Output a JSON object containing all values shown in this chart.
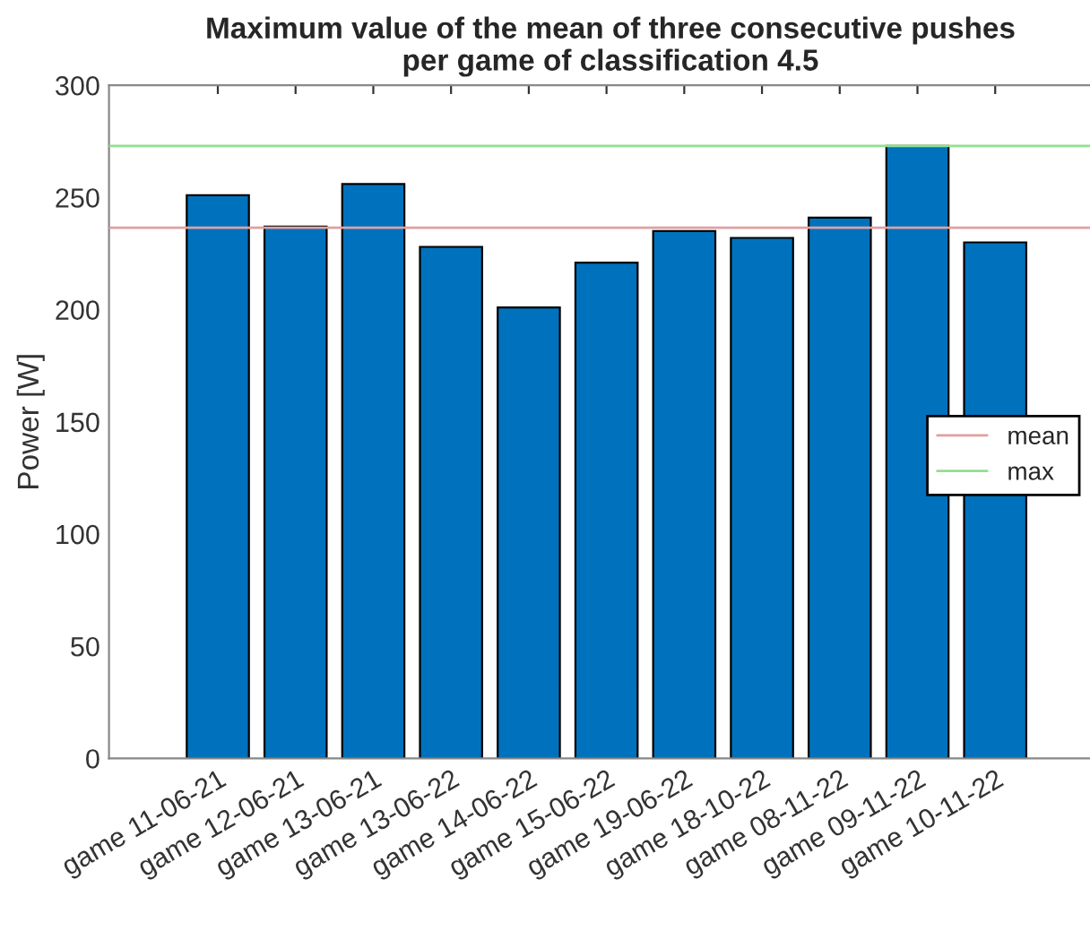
{
  "chart_data": {
    "type": "bar",
    "title": "Maximum value of the mean of three consecutive pushes\nper game of classification 4.5",
    "ylabel": "Power [W]",
    "categories": [
      "game 11-06-21",
      "game 12-06-21",
      "game 13-06-21",
      "game 13-06-22",
      "game 14-06-22",
      "game 15-06-22",
      "game 19-06-22",
      "game 18-10-22",
      "game 08-11-22",
      "game 09-11-22",
      "game 10-11-22"
    ],
    "values": [
      251,
      237,
      256,
      228,
      201,
      221,
      235,
      232,
      241,
      273,
      230
    ],
    "color": "#0072bd",
    "ylim": [
      0,
      300
    ],
    "yticks": [
      0,
      50,
      100,
      150,
      200,
      250,
      300
    ],
    "ref_lines": [
      {
        "axis": "y",
        "value": 236.5,
        "label": "mean",
        "color": "#e0a0a0"
      },
      {
        "axis": "y",
        "value": 273,
        "label": "max",
        "color": "#90e090"
      }
    ],
    "grid": false,
    "legend": "right"
  }
}
